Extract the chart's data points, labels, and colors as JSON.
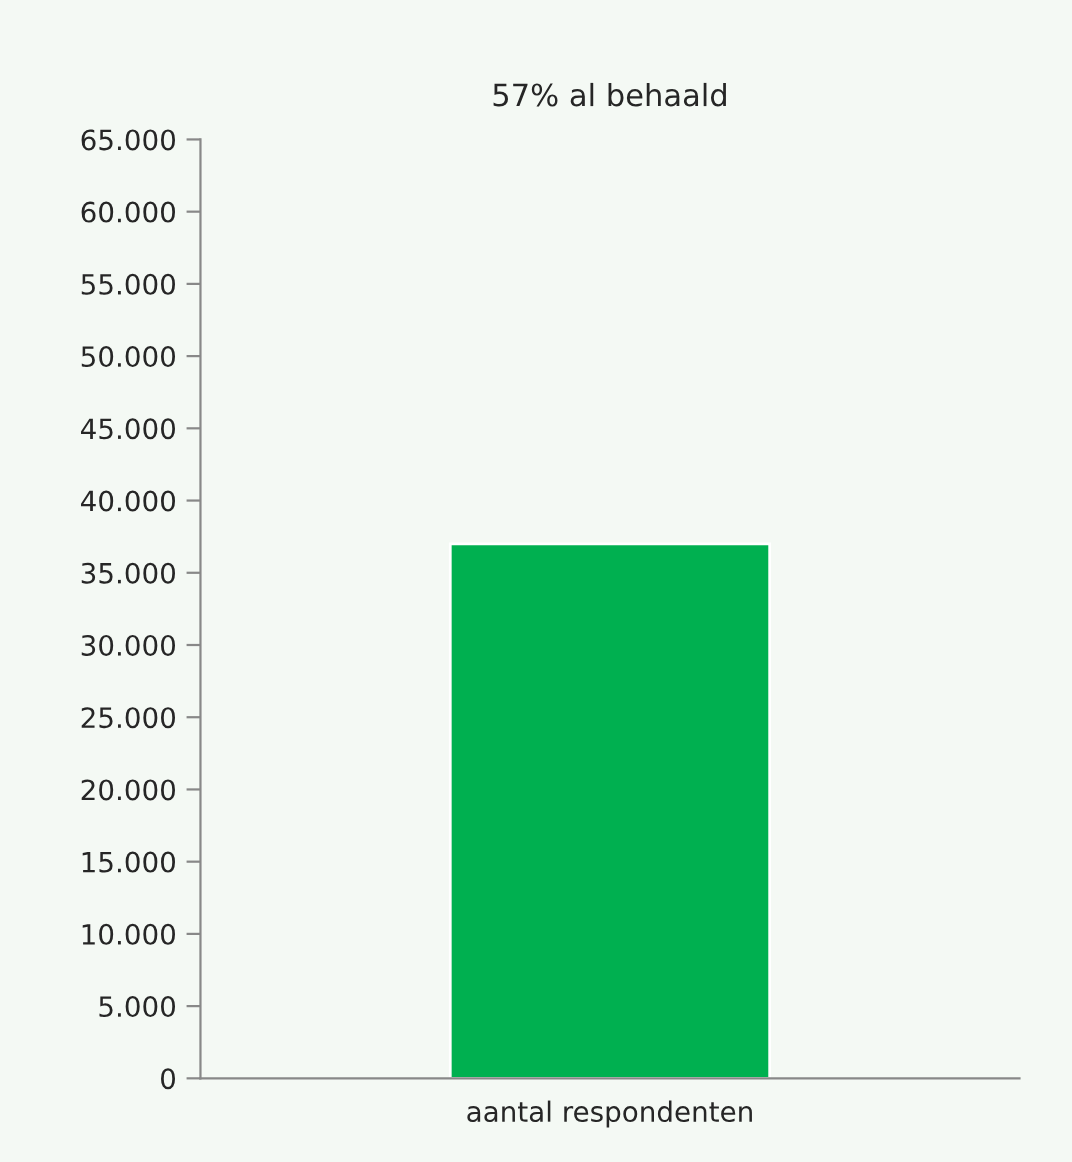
{
  "chart_data": {
    "type": "bar",
    "title": "57% al behaald",
    "categories": [
      "aantal respondenten"
    ],
    "values": [
      37000
    ],
    "color": "#00b050",
    "ylim": [
      0,
      65000
    ],
    "yticks": [
      {
        "value": 0,
        "label": "0"
      },
      {
        "value": 5000,
        "label": "5.000"
      },
      {
        "value": 10000,
        "label": "10.000"
      },
      {
        "value": 15000,
        "label": "15.000"
      },
      {
        "value": 20000,
        "label": "20.000"
      },
      {
        "value": 25000,
        "label": "25.000"
      },
      {
        "value": 30000,
        "label": "30.000"
      },
      {
        "value": 35000,
        "label": "35.000"
      },
      {
        "value": 40000,
        "label": "40.000"
      },
      {
        "value": 45000,
        "label": "45.000"
      },
      {
        "value": 50000,
        "label": "50.000"
      },
      {
        "value": 55000,
        "label": "55.000"
      },
      {
        "value": 60000,
        "label": "60.000"
      },
      {
        "value": 65000,
        "label": "65.000"
      }
    ],
    "grid": false,
    "legend": false
  }
}
